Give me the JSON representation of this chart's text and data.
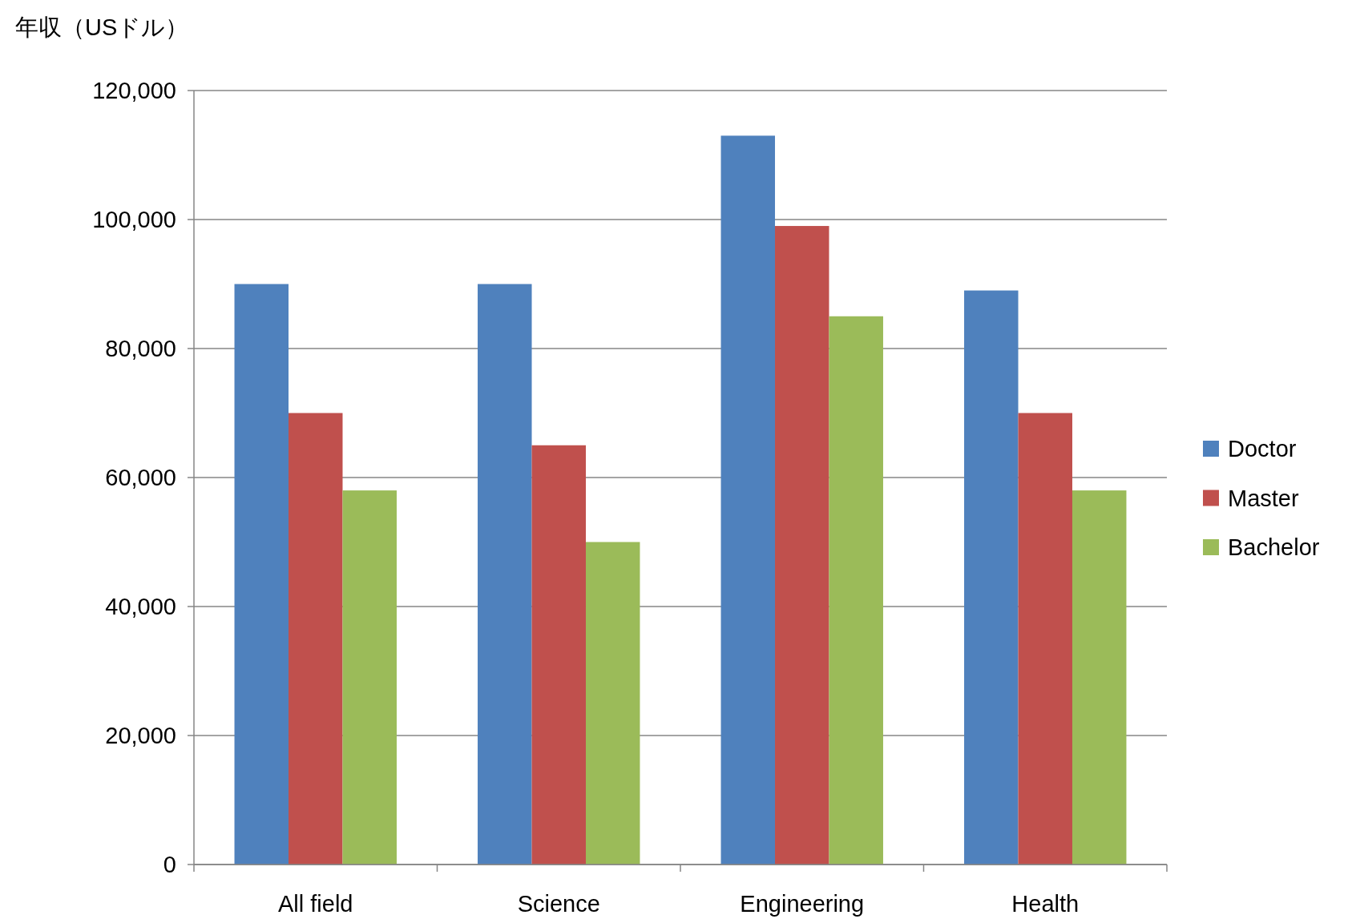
{
  "chart_data": {
    "type": "bar",
    "ylabel": "年収（USドル）",
    "categories": [
      "All field",
      "Science",
      "Engineering",
      "Health"
    ],
    "series": [
      {
        "name": "Doctor",
        "color": "#4f81bd",
        "values": [
          90000,
          90000,
          113000,
          89000
        ]
      },
      {
        "name": "Master",
        "color": "#c0504d",
        "values": [
          70000,
          65000,
          99000,
          70000
        ]
      },
      {
        "name": "Bachelor",
        "color": "#9bbb59",
        "values": [
          58000,
          50000,
          85000,
          58000
        ]
      }
    ],
    "ylim": [
      0,
      120000
    ],
    "yticks": [
      0,
      {
        "value": 20000,
        "label": "20,000"
      },
      {
        "value": 40000,
        "label": "40,000"
      },
      {
        "value": 60000,
        "label": "60,000"
      },
      {
        "value": 80000,
        "label": "80,000"
      },
      {
        "value": 100000,
        "label": "100,000"
      },
      {
        "value": 120000,
        "label": "120,000"
      }
    ],
    "grid": "y",
    "legend": "right"
  }
}
